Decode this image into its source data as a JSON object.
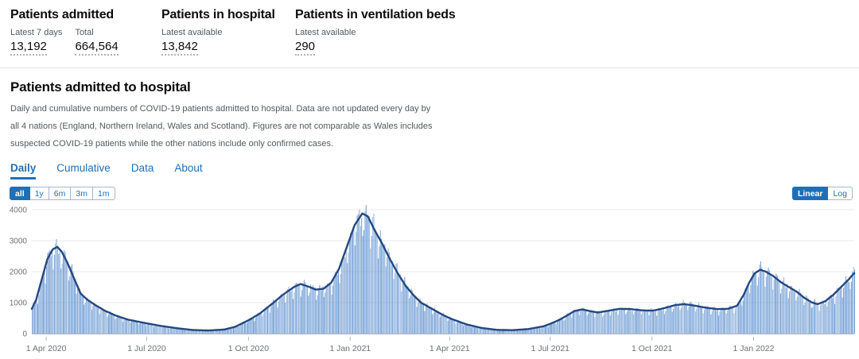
{
  "stats": {
    "cards": [
      {
        "title": "Patients admitted",
        "metrics": [
          {
            "label": "Latest 7 days",
            "value": "13,192"
          },
          {
            "label": "Total",
            "value": "664,564"
          }
        ]
      },
      {
        "title": "Patients in hospital",
        "metrics": [
          {
            "label": "Latest available",
            "value": "13,842"
          }
        ]
      },
      {
        "title": "Patients in ventilation beds",
        "metrics": [
          {
            "label": "Latest available",
            "value": "290"
          }
        ]
      }
    ]
  },
  "section": {
    "title": "Patients admitted to hospital",
    "description": "Daily and cumulative numbers of COVID-19 patients admitted to hospital. Data are not updated every day by all 4 nations (England, Northern Ireland, Wales and Scotland). Figures are not comparable as Wales includes suspected COVID-19 patients while the other nations include only confirmed cases."
  },
  "tabs": [
    {
      "label": "Daily",
      "active": true
    },
    {
      "label": "Cumulative",
      "active": false
    },
    {
      "label": "Data",
      "active": false
    },
    {
      "label": "About",
      "active": false
    }
  ],
  "range_buttons": [
    {
      "label": "all",
      "active": true
    },
    {
      "label": "1y",
      "active": false
    },
    {
      "label": "6m",
      "active": false
    },
    {
      "label": "3m",
      "active": false
    },
    {
      "label": "1m",
      "active": false
    }
  ],
  "scale_buttons": [
    {
      "label": "Linear",
      "active": true
    },
    {
      "label": "Log",
      "active": false
    }
  ],
  "colors": {
    "accent": "#1d70b8",
    "bar": "#6d9bd3",
    "line": "#24477f",
    "grid": "#e9e9e9",
    "axis": "#b1b4b6",
    "tick_text": "#6b7276"
  },
  "chart_data": {
    "type": "bar",
    "title": "Daily patients admitted to hospital (bars: daily count, dark line: rolling average)",
    "xlabel": "",
    "ylabel": "",
    "ylim": [
      0,
      4200
    ],
    "grid": true,
    "legend": "none",
    "y_ticks": [
      0,
      1000,
      2000,
      3000,
      4000
    ],
    "start_date": "2020-03-19",
    "days_total": 745,
    "x_ticks": [
      {
        "day": 13,
        "label": "1 Apr 2020"
      },
      {
        "day": 104,
        "label": "1 Jul 2020"
      },
      {
        "day": 196,
        "label": "1 Oct 2020"
      },
      {
        "day": 288,
        "label": "1 Jan 2021"
      },
      {
        "day": 378,
        "label": "1 Apr 2021"
      },
      {
        "day": 469,
        "label": "1 Jul 2021"
      },
      {
        "day": 561,
        "label": "1 Oct 2021"
      },
      {
        "day": 653,
        "label": "1 Jan 2022"
      }
    ],
    "rolling_average_points": [
      [
        0,
        800
      ],
      [
        4,
        1100
      ],
      [
        9,
        1750
      ],
      [
        14,
        2400
      ],
      [
        19,
        2720
      ],
      [
        23,
        2800
      ],
      [
        27,
        2650
      ],
      [
        32,
        2300
      ],
      [
        38,
        1800
      ],
      [
        44,
        1300
      ],
      [
        50,
        1100
      ],
      [
        57,
        930
      ],
      [
        66,
        740
      ],
      [
        76,
        580
      ],
      [
        87,
        450
      ],
      [
        104,
        330
      ],
      [
        118,
        240
      ],
      [
        132,
        170
      ],
      [
        146,
        115
      ],
      [
        160,
        100
      ],
      [
        174,
        130
      ],
      [
        184,
        220
      ],
      [
        196,
        430
      ],
      [
        206,
        640
      ],
      [
        217,
        950
      ],
      [
        227,
        1250
      ],
      [
        237,
        1500
      ],
      [
        243,
        1600
      ],
      [
        250,
        1520
      ],
      [
        257,
        1420
      ],
      [
        264,
        1450
      ],
      [
        271,
        1650
      ],
      [
        278,
        2100
      ],
      [
        285,
        2800
      ],
      [
        292,
        3500
      ],
      [
        299,
        3880
      ],
      [
        304,
        3780
      ],
      [
        310,
        3350
      ],
      [
        317,
        2900
      ],
      [
        324,
        2400
      ],
      [
        331,
        1950
      ],
      [
        338,
        1550
      ],
      [
        345,
        1250
      ],
      [
        352,
        1000
      ],
      [
        362,
        800
      ],
      [
        372,
        600
      ],
      [
        379,
        480
      ],
      [
        393,
        300
      ],
      [
        407,
        180
      ],
      [
        421,
        120
      ],
      [
        435,
        110
      ],
      [
        449,
        145
      ],
      [
        463,
        235
      ],
      [
        470,
        330
      ],
      [
        477,
        440
      ],
      [
        484,
        580
      ],
      [
        491,
        730
      ],
      [
        498,
        780
      ],
      [
        505,
        725
      ],
      [
        512,
        680
      ],
      [
        522,
        740
      ],
      [
        532,
        800
      ],
      [
        542,
        790
      ],
      [
        552,
        750
      ],
      [
        562,
        740
      ],
      [
        572,
        820
      ],
      [
        582,
        920
      ],
      [
        590,
        950
      ],
      [
        600,
        900
      ],
      [
        610,
        835
      ],
      [
        620,
        790
      ],
      [
        630,
        800
      ],
      [
        638,
        900
      ],
      [
        644,
        1250
      ],
      [
        649,
        1650
      ],
      [
        654,
        1950
      ],
      [
        659,
        2060
      ],
      [
        664,
        2000
      ],
      [
        671,
        1850
      ],
      [
        678,
        1650
      ],
      [
        685,
        1500
      ],
      [
        692,
        1350
      ],
      [
        699,
        1150
      ],
      [
        706,
        1000
      ],
      [
        711,
        950
      ],
      [
        718,
        1050
      ],
      [
        725,
        1250
      ],
      [
        732,
        1500
      ],
      [
        739,
        1750
      ],
      [
        744,
        1950
      ]
    ],
    "weekday_pattern": [
      1.05,
      1.08,
      1.02,
      0.97,
      1.0,
      0.78,
      0.9
    ]
  }
}
